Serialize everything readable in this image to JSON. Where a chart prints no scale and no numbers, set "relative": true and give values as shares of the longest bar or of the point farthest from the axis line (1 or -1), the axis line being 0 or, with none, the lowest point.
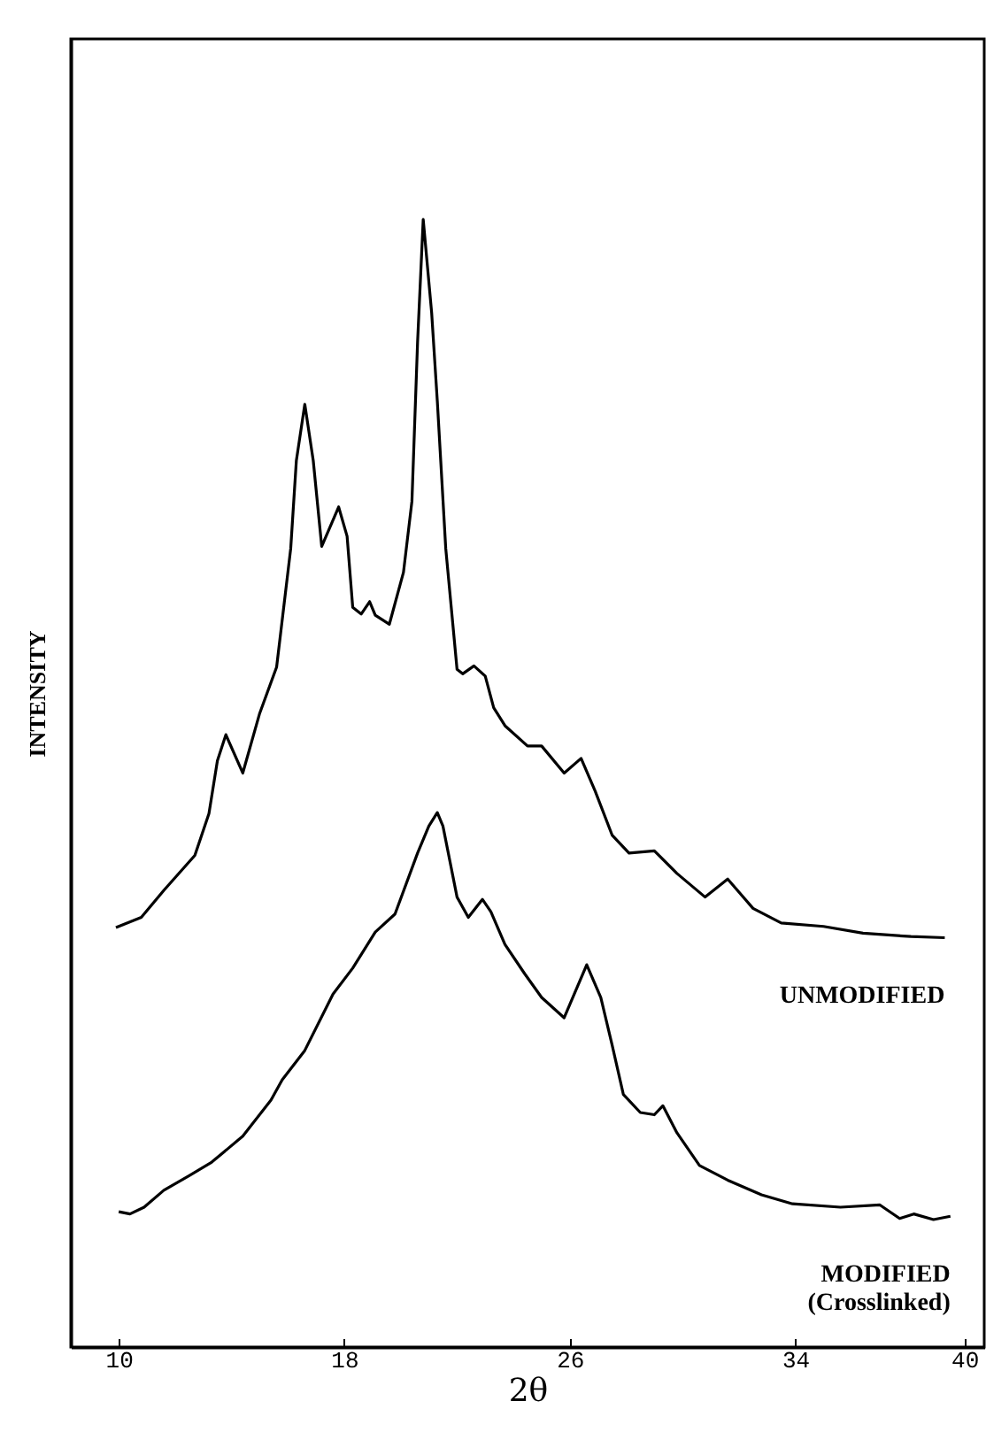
{
  "chart_data": {
    "type": "line",
    "relative": true,
    "xlabel": "2θ",
    "ylabel": "INTENSITY",
    "xlim": [
      8.3,
      40.7
    ],
    "xticks": [
      10,
      18,
      26,
      34,
      40
    ],
    "grid": false,
    "marker": "none",
    "line_style": "solid",
    "series": [
      {
        "name": "UNMODIFIED",
        "color": "#000000",
        "x": [
          9.9,
          10.8,
          11.6,
          12.7,
          13.2,
          13.5,
          13.8,
          14.4,
          15.0,
          15.6,
          16.1,
          16.3,
          16.6,
          16.9,
          17.2,
          17.8,
          18.1,
          18.3,
          18.6,
          18.9,
          19.1,
          19.6,
          20.1,
          20.4,
          20.6,
          20.8,
          21.1,
          21.3,
          21.6,
          22.0,
          22.2,
          22.6,
          23.0,
          23.3,
          23.7,
          24.5,
          25.0,
          25.8,
          26.4,
          26.9,
          27.5,
          28.1,
          29.0,
          29.8,
          30.8,
          31.6,
          32.5,
          33.5,
          35.0,
          36.4,
          38.1,
          39.3
        ],
        "values": [
          0.372,
          0.381,
          0.405,
          0.436,
          0.473,
          0.52,
          0.543,
          0.509,
          0.562,
          0.603,
          0.708,
          0.786,
          0.836,
          0.786,
          0.71,
          0.745,
          0.719,
          0.656,
          0.65,
          0.661,
          0.649,
          0.641,
          0.687,
          0.75,
          0.891,
          1,
          0.917,
          0.839,
          0.708,
          0.601,
          0.597,
          0.604,
          0.595,
          0.567,
          0.551,
          0.533,
          0.533,
          0.509,
          0.522,
          0.493,
          0.454,
          0.438,
          0.44,
          0.42,
          0.399,
          0.415,
          0.389,
          0.376,
          0.373,
          0.367,
          0.364,
          0.363
        ]
      },
      {
        "name": "MODIFIED (Crosslinked)",
        "color": "#000000",
        "x": [
          10.0,
          10.4,
          10.9,
          11.6,
          12.5,
          13.3,
          14.4,
          15.4,
          15.8,
          16.6,
          17.6,
          18.3,
          19.1,
          19.8,
          20.6,
          21.0,
          21.3,
          21.5,
          22.0,
          22.4,
          22.9,
          23.2,
          23.7,
          24.4,
          25.0,
          25.8,
          26.6,
          27.1,
          27.5,
          27.9,
          28.5,
          29.0,
          29.3,
          29.8,
          30.6,
          31.6,
          32.8,
          33.9,
          35.6,
          37.0,
          37.7,
          38.2,
          38.9,
          39.5
        ],
        "values": [
          0.12,
          0.118,
          0.124,
          0.139,
          0.152,
          0.164,
          0.187,
          0.219,
          0.237,
          0.263,
          0.313,
          0.336,
          0.368,
          0.384,
          0.438,
          0.462,
          0.474,
          0.462,
          0.399,
          0.381,
          0.397,
          0.386,
          0.357,
          0.331,
          0.31,
          0.292,
          0.339,
          0.31,
          0.268,
          0.224,
          0.208,
          0.206,
          0.214,
          0.19,
          0.161,
          0.148,
          0.135,
          0.127,
          0.124,
          0.126,
          0.114,
          0.118,
          0.113,
          0.116
        ]
      }
    ]
  }
}
